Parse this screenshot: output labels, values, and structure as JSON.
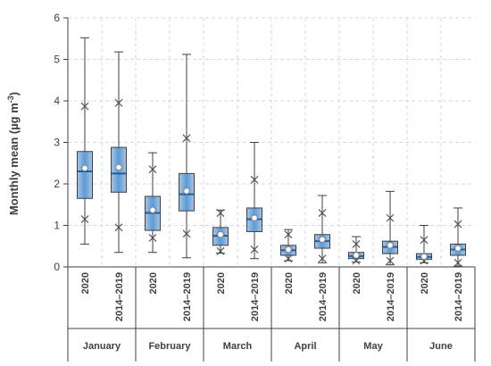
{
  "chart_data": {
    "type": "box",
    "ylabel": "Monthly mean (µg m⁻³)",
    "ylabel_main": "Monthly mean (µg m",
    "ylabel_sup": "-3",
    "ylabel_close": ")",
    "ylim": [
      0,
      6
    ],
    "yticks": [
      0,
      1,
      2,
      3,
      4,
      5,
      6
    ],
    "grid": true,
    "colors": {
      "box_fill": "#a9c4e4",
      "box_center": "#5b9bd5",
      "median": "#1f5f9e",
      "outline": "#404040",
      "grid": "#d9d9d9"
    },
    "groups": [
      {
        "month": "January",
        "boxes": [
          {
            "label": "2020",
            "whisker_low": 0.55,
            "p5": 1.15,
            "q1": 1.65,
            "median": 2.3,
            "mean": 2.38,
            "q3": 2.78,
            "p95": 3.87,
            "whisker_high": 5.52
          },
          {
            "label": "2014–2019",
            "whisker_low": 0.35,
            "p5": 0.95,
            "q1": 1.8,
            "median": 2.25,
            "mean": 2.4,
            "q3": 2.88,
            "p95": 3.95,
            "whisker_high": 5.18
          }
        ]
      },
      {
        "month": "February",
        "boxes": [
          {
            "label": "2020",
            "whisker_low": 0.35,
            "p5": 0.7,
            "q1": 0.88,
            "median": 1.3,
            "mean": 1.37,
            "q3": 1.7,
            "p95": 2.35,
            "whisker_high": 2.75
          },
          {
            "label": "2014–2019",
            "whisker_low": 0.22,
            "p5": 0.8,
            "q1": 1.35,
            "median": 1.75,
            "mean": 1.83,
            "q3": 2.25,
            "p95": 3.1,
            "whisker_high": 5.12
          }
        ]
      },
      {
        "month": "March",
        "boxes": [
          {
            "label": "2020",
            "whisker_low": 0.33,
            "p5": 0.38,
            "q1": 0.52,
            "median": 0.75,
            "mean": 0.78,
            "q3": 0.95,
            "p95": 1.3,
            "whisker_high": 1.37
          },
          {
            "label": "2014–2019",
            "whisker_low": 0.2,
            "p5": 0.42,
            "q1": 0.85,
            "median": 1.15,
            "mean": 1.18,
            "q3": 1.42,
            "p95": 2.1,
            "whisker_high": 3.0
          }
        ]
      },
      {
        "month": "April",
        "boxes": [
          {
            "label": "2020",
            "whisker_low": 0.15,
            "p5": 0.2,
            "q1": 0.28,
            "median": 0.4,
            "mean": 0.42,
            "q3": 0.52,
            "p95": 0.78,
            "whisker_high": 0.9
          },
          {
            "label": "2014–2019",
            "whisker_low": 0.1,
            "p5": 0.2,
            "q1": 0.45,
            "median": 0.62,
            "mean": 0.66,
            "q3": 0.78,
            "p95": 1.3,
            "whisker_high": 1.72
          }
        ]
      },
      {
        "month": "May",
        "boxes": [
          {
            "label": "2020",
            "whisker_low": 0.12,
            "p5": 0.15,
            "q1": 0.2,
            "median": 0.26,
            "mean": 0.28,
            "q3": 0.35,
            "p95": 0.55,
            "whisker_high": 0.73
          },
          {
            "label": "2014–2019",
            "whisker_low": 0.05,
            "p5": 0.15,
            "q1": 0.32,
            "median": 0.48,
            "mean": 0.52,
            "q3": 0.62,
            "p95": 1.18,
            "whisker_high": 1.82
          }
        ]
      },
      {
        "month": "June",
        "boxes": [
          {
            "label": "2020",
            "whisker_low": 0.1,
            "p5": 0.15,
            "q1": 0.18,
            "median": 0.24,
            "mean": 0.25,
            "q3": 0.32,
            "p95": 0.65,
            "whisker_high": 1.0
          },
          {
            "label": "2014–2019",
            "whisker_low": 0.02,
            "p5": 0.1,
            "q1": 0.28,
            "median": 0.42,
            "mean": 0.45,
            "q3": 0.55,
            "p95": 1.03,
            "whisker_high": 1.42
          }
        ]
      }
    ]
  }
}
